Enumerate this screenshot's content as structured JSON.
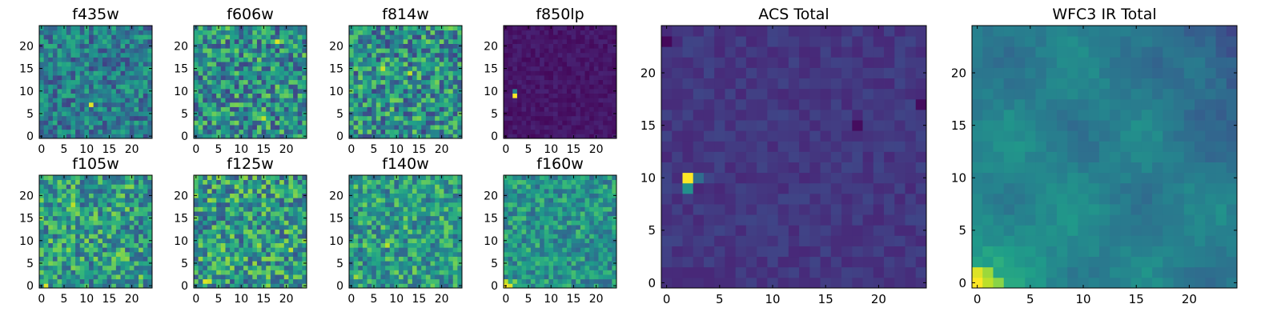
{
  "chart_data": [
    {
      "type": "heatmap",
      "title": "f435w",
      "xticks": [
        0,
        5,
        10,
        15,
        20
      ],
      "yticks": [
        0,
        5,
        10,
        15,
        20
      ],
      "xlim": [
        0,
        24
      ],
      "ylim": [
        0,
        24
      ],
      "colormap": "viridis",
      "pattern": "noise",
      "base": 0.42,
      "amp": 0.22,
      "seed": 11,
      "highlights": [
        {
          "x": 11,
          "y": 7,
          "v": 0.95
        }
      ]
    },
    {
      "type": "heatmap",
      "title": "f606w",
      "xticks": [
        0,
        5,
        10,
        15,
        20
      ],
      "yticks": [
        0,
        5,
        10,
        15,
        20
      ],
      "xlim": [
        0,
        24
      ],
      "ylim": [
        0,
        24
      ],
      "colormap": "viridis",
      "pattern": "noise",
      "base": 0.5,
      "amp": 0.3,
      "seed": 23,
      "highlights": [
        {
          "x": 18,
          "y": 21,
          "v": 0.95
        },
        {
          "x": 15,
          "y": 4,
          "v": 0.9
        }
      ]
    },
    {
      "type": "heatmap",
      "title": "f814w",
      "xticks": [
        0,
        5,
        10,
        15,
        20
      ],
      "yticks": [
        0,
        5,
        10,
        15,
        20
      ],
      "xlim": [
        0,
        24
      ],
      "ylim": [
        0,
        24
      ],
      "colormap": "viridis",
      "pattern": "noise",
      "base": 0.5,
      "amp": 0.3,
      "seed": 37,
      "highlights": [
        {
          "x": 7,
          "y": 15,
          "v": 0.92
        },
        {
          "x": 13,
          "y": 14,
          "v": 0.9
        }
      ]
    },
    {
      "type": "heatmap",
      "title": "f850lp",
      "xticks": [
        0,
        5,
        10,
        15,
        20
      ],
      "yticks": [
        0,
        5,
        10,
        15,
        20
      ],
      "xlim": [
        0,
        24
      ],
      "ylim": [
        0,
        24
      ],
      "colormap": "viridis",
      "pattern": "noise",
      "base": 0.06,
      "amp": 0.04,
      "seed": 41,
      "highlights": [
        {
          "x": 2,
          "y": 9,
          "v": 1.0
        },
        {
          "x": 2,
          "y": 10,
          "v": 0.45
        }
      ]
    },
    {
      "type": "heatmap",
      "title": "f105w",
      "xticks": [
        0,
        5,
        10,
        15,
        20
      ],
      "yticks": [
        0,
        5,
        10,
        15,
        20
      ],
      "xlim": [
        0,
        24
      ],
      "ylim": [
        0,
        24
      ],
      "colormap": "viridis",
      "pattern": "noise",
      "base": 0.55,
      "amp": 0.28,
      "seed": 53,
      "highlights": [
        {
          "x": 1,
          "y": 0,
          "v": 0.95
        },
        {
          "x": 7,
          "y": 18,
          "v": 0.9
        }
      ]
    },
    {
      "type": "heatmap",
      "title": "f125w",
      "xticks": [
        0,
        5,
        10,
        15,
        20
      ],
      "yticks": [
        0,
        5,
        10,
        15,
        20
      ],
      "xlim": [
        0,
        24
      ],
      "ylim": [
        0,
        24
      ],
      "colormap": "viridis",
      "pattern": "noise",
      "base": 0.55,
      "amp": 0.3,
      "seed": 67,
      "highlights": [
        {
          "x": 2,
          "y": 1,
          "v": 0.95
        },
        {
          "x": 3,
          "y": 1,
          "v": 0.92
        },
        {
          "x": 21,
          "y": 8,
          "v": 0.9
        }
      ]
    },
    {
      "type": "heatmap",
      "title": "f140w",
      "xticks": [
        0,
        5,
        10,
        15,
        20
      ],
      "yticks": [
        0,
        5,
        10,
        15,
        20
      ],
      "xlim": [
        0,
        24
      ],
      "ylim": [
        0,
        24
      ],
      "colormap": "viridis",
      "pattern": "noise",
      "base": 0.55,
      "amp": 0.25,
      "seed": 79,
      "highlights": [
        {
          "x": 8,
          "y": 9,
          "v": 0.9
        },
        {
          "x": 1,
          "y": 2,
          "v": 0.85
        }
      ]
    },
    {
      "type": "heatmap",
      "title": "f160w",
      "xticks": [
        0,
        5,
        10,
        15,
        20
      ],
      "yticks": [
        0,
        5,
        10,
        15,
        20
      ],
      "xlim": [
        0,
        24
      ],
      "ylim": [
        0,
        24
      ],
      "colormap": "viridis",
      "pattern": "noise",
      "base": 0.52,
      "amp": 0.2,
      "seed": 83,
      "highlights": [
        {
          "x": 0,
          "y": 0,
          "v": 1.0
        },
        {
          "x": 1,
          "y": 0,
          "v": 0.95
        },
        {
          "x": 0,
          "y": 1,
          "v": 0.9
        },
        {
          "x": 2,
          "y": 1,
          "v": 0.8
        }
      ]
    },
    {
      "type": "heatmap",
      "title": "ACS Total",
      "xticks": [
        0,
        5,
        10,
        15,
        20
      ],
      "yticks": [
        0,
        5,
        10,
        15,
        20
      ],
      "xlim": [
        0,
        24
      ],
      "ylim": [
        0,
        24
      ],
      "colormap": "viridis",
      "pattern": "noise",
      "base": 0.16,
      "amp": 0.05,
      "seed": 97,
      "highlights": [
        {
          "x": 2,
          "y": 10,
          "v": 1.0
        },
        {
          "x": 2,
          "y": 9,
          "v": 0.5
        },
        {
          "x": 3,
          "y": 10,
          "v": 0.35
        },
        {
          "x": 0,
          "y": 23,
          "v": 0.02
        },
        {
          "x": 18,
          "y": 15,
          "v": 0.03
        },
        {
          "x": 24,
          "y": 17,
          "v": 0.03
        }
      ]
    },
    {
      "type": "heatmap",
      "title": "WFC3 IR Total",
      "xticks": [
        0,
        5,
        10,
        15,
        20
      ],
      "yticks": [
        0,
        5,
        10,
        15,
        20
      ],
      "xlim": [
        0,
        24
      ],
      "ylim": [
        0,
        24
      ],
      "colormap": "viridis",
      "pattern": "ir_total",
      "base": 0.42,
      "amp": 0.08,
      "seed": 101,
      "highlights": [
        {
          "x": 0,
          "y": 0,
          "v": 1.0
        },
        {
          "x": 0,
          "y": 1,
          "v": 0.95
        },
        {
          "x": 1,
          "y": 0,
          "v": 0.9
        },
        {
          "x": 1,
          "y": 1,
          "v": 0.85
        },
        {
          "x": 2,
          "y": 0,
          "v": 0.82
        }
      ]
    }
  ]
}
